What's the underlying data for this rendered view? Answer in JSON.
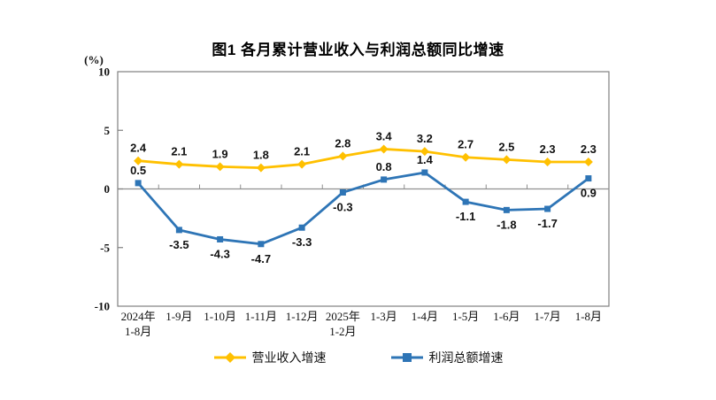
{
  "chart_data": {
    "type": "line",
    "title": "图1 各月累计营业收入与利润总额同比增速",
    "y_unit_label": "(%)",
    "xlabel": "",
    "ylabel": "",
    "ylim": [
      -10,
      10
    ],
    "yticks": [
      10,
      5,
      0,
      -5,
      -10
    ],
    "grid": false,
    "legend_position": "bottom",
    "categories": [
      "2024年\n1-8月",
      "1-9月",
      "1-10月",
      "1-11月",
      "1-12月",
      "2025年\n1-2月",
      "1-3月",
      "1-4月",
      "1-5月",
      "1-6月",
      "1-7月",
      "1-8月"
    ],
    "series": [
      {
        "name": "营业收入增速",
        "color": "#FFC000",
        "marker": "diamond",
        "values": [
          2.4,
          2.1,
          1.9,
          1.8,
          2.1,
          2.8,
          3.4,
          3.2,
          2.7,
          2.5,
          2.3,
          2.3
        ],
        "label_positions": [
          "above",
          "above",
          "above",
          "above",
          "above",
          "above",
          "above",
          "above",
          "above",
          "above",
          "above",
          "above"
        ]
      },
      {
        "name": "利润总额增速",
        "color": "#2E75B6",
        "marker": "square",
        "values": [
          0.5,
          -3.5,
          -4.3,
          -4.7,
          -3.3,
          -0.3,
          0.8,
          1.4,
          -1.1,
          -1.8,
          -1.7,
          0.9
        ],
        "label_positions": [
          "above",
          "below",
          "below",
          "below",
          "below",
          "below",
          "above",
          "above",
          "below",
          "below",
          "below",
          "below"
        ]
      }
    ],
    "axis_color": "#808080",
    "zero_line_color": "#8f8f8f"
  }
}
